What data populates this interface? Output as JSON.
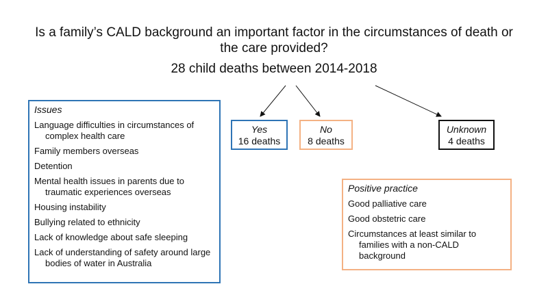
{
  "title": "Is a family’s CALD background an important factor in the circumstances of death or the care provided?",
  "subtitle": "28 child deaths between 2014-2018",
  "outcomes": [
    {
      "label": "Yes",
      "count": "16 deaths",
      "color": "#2e74b5"
    },
    {
      "label": "No",
      "count": "8 deaths",
      "color": "#f4b183"
    },
    {
      "label": "Unknown",
      "count": "4 deaths",
      "color": "#111111"
    }
  ],
  "issues": {
    "heading": "Issues",
    "color": "#2e74b5",
    "items": [
      "Language difficulties in circumstances of complex health care",
      "Family members overseas",
      "Detention",
      "Mental health issues in parents due to traumatic experiences overseas",
      "Housing instability",
      "Bullying related to ethnicity",
      "Lack of knowledge about safe sleeping",
      "Lack of understanding of safety around large bodies of water in Australia"
    ]
  },
  "positive_practice": {
    "heading": "Positive practice",
    "color": "#f4b183",
    "items": [
      "Good palliative care",
      "Good obstetric care",
      "Circumstances at least similar to families with a non-CALD background"
    ]
  }
}
